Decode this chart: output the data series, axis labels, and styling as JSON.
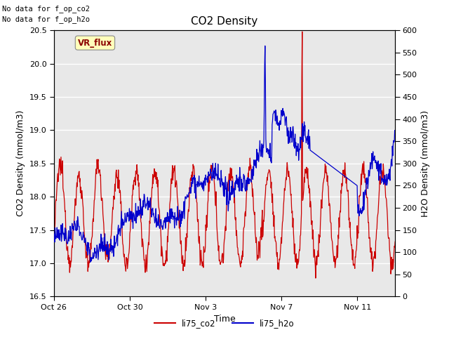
{
  "title": "CO2 Density",
  "xlabel": "Time",
  "ylabel_left": "CO2 Density (mmol/m3)",
  "ylabel_right": "H2O Density (mmol/m3)",
  "text_no_data_1": "No data for f_op_co2",
  "text_no_data_2": "No data for f_op_h2o",
  "vr_flux_label": "VR_flux",
  "legend_labels": [
    "li75_co2",
    "li75_h2o"
  ],
  "co2_color": "#cc0000",
  "h2o_color": "#0000cc",
  "background_plot": "#e8e8e8",
  "background_fig": "#ffffff",
  "ylim_left": [
    16.5,
    20.5
  ],
  "ylim_right": [
    0,
    600
  ],
  "yticks_left": [
    16.5,
    17.0,
    17.5,
    18.0,
    18.5,
    19.0,
    19.5,
    20.0,
    20.5
  ],
  "yticks_right": [
    0,
    50,
    100,
    150,
    200,
    250,
    300,
    350,
    400,
    450,
    500,
    550,
    600
  ],
  "xtick_positions": [
    0,
    4,
    8,
    12,
    16
  ],
  "xtick_labels": [
    "Oct 26",
    "Oct 30",
    "Nov 3",
    "Nov 7",
    "Nov 11"
  ],
  "xmax": 18,
  "grid_color": "#ffffff",
  "title_fontsize": 11,
  "axis_label_fontsize": 9,
  "tick_fontsize": 8,
  "linewidth": 0.9
}
